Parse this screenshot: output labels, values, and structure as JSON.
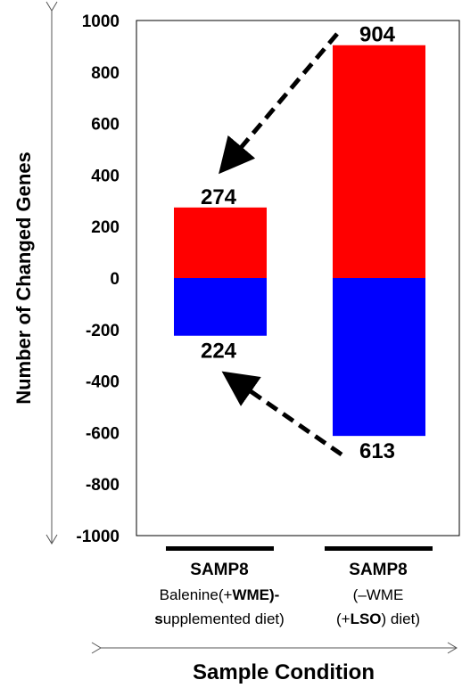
{
  "chart_data": {
    "type": "bar",
    "stacked": true,
    "ylabel": "Number of Changed Genes",
    "xlabel": "Sample Condition",
    "ylim": [
      -1000,
      1000
    ],
    "yticks": [
      "1000",
      "800",
      "600",
      "400",
      "200",
      "0",
      "-200",
      "-400",
      "-600",
      "-800",
      "-1000"
    ],
    "ytick_values": [
      1000,
      800,
      600,
      400,
      200,
      0,
      -200,
      -400,
      -600,
      -800,
      -1000
    ],
    "grid": false,
    "categories": [
      {
        "title": "SAMP8",
        "line1": [
          {
            "text": "Balenine(+",
            "bold": false
          },
          {
            "text": "WME",
            "bold": true
          },
          {
            "text": ")-",
            "bold": true
          }
        ],
        "line2": [
          {
            "text": "s",
            "bold": true
          },
          {
            "text": "upplemented diet)",
            "bold": false
          }
        ]
      },
      {
        "title": "SAMP8",
        "line1": [
          {
            "text": "(–WME",
            "bold": false
          }
        ],
        "line2": [
          {
            "text": "(+",
            "bold": false
          },
          {
            "text": "LSO",
            "bold": true
          },
          {
            "text": ") diet)",
            "bold": false
          }
        ]
      }
    ],
    "series": [
      {
        "key": "up",
        "values": [
          274,
          904
        ],
        "color": "#ff0000"
      },
      {
        "key": "down",
        "values": [
          -224,
          -613
        ],
        "color": "#0000ff"
      }
    ],
    "data_labels": {
      "up": [
        "274",
        "904"
      ],
      "down": [
        "224",
        "613"
      ]
    }
  }
}
